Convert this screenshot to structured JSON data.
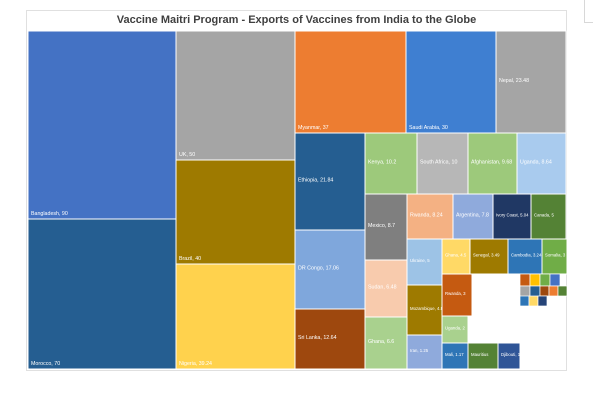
{
  "chart_data": {
    "type": "treemap",
    "title": "Vaccine Maitri Program - Exports of Vaccines from India to the Globe",
    "tiles": [
      {
        "label": "Bangladesh, 90",
        "color": "#4472c4"
      },
      {
        "label": "Morocco, 70",
        "color": "#255e91"
      },
      {
        "label": "UK, 50",
        "color": "#a5a5a5"
      },
      {
        "label": "Brazil, 40",
        "color": "#9e7a00"
      },
      {
        "label": "Nigeria, 39.24",
        "color": "#ffd24d"
      },
      {
        "label": "Myanmar, 37",
        "color": "#ed7d31"
      },
      {
        "label": "Saudi Arabia, 30",
        "color": "#3f7fd1"
      },
      {
        "label": "Nepal, 23.48",
        "color": "#a5a5a5"
      },
      {
        "label": "Ethiopia, 21.84",
        "color": "#255e91"
      },
      {
        "label": "DR Congo, 17.06",
        "color": "#7fa7dc"
      },
      {
        "label": "Sri Lanka, 12.64",
        "color": "#9e480e"
      },
      {
        "label": "Kenya, 10.2",
        "color": "#9dc97b"
      },
      {
        "label": "South Africa, 10",
        "color": "#b7b7b7"
      },
      {
        "label": "Afghanistan, 9.68",
        "color": "#9dc97b"
      },
      {
        "label": "Uganda, 8.64",
        "color": "#a9cbee"
      },
      {
        "label": "Mexico, 8.7",
        "color": "#7f7f7f"
      },
      {
        "label": "Rwanda, 8.24",
        "color": "#f4b183"
      },
      {
        "label": "Argentina, 7.8",
        "color": "#8faadc"
      },
      {
        "label": "Ivory Coast, 5.04",
        "color": "#203864"
      },
      {
        "label": "Canada, 5",
        "color": "#548235"
      },
      {
        "label": "Sudan, 6.48",
        "color": "#f8cbad"
      },
      {
        "label": "Ghana, 6.6",
        "color": "#a9d18e"
      },
      {
        "label": "Ukraine, 5",
        "color": "#9dc3e6"
      },
      {
        "label": "Mozambique, 4.84",
        "color": "#9e7a00"
      },
      {
        "label": "Iran, 1.25",
        "color": "#8faadc"
      },
      {
        "label": "Ghana, 4.5",
        "color": "#ffd966"
      },
      {
        "label": "Senegal, 3.49",
        "color": "#9e7a00"
      },
      {
        "label": "Cambodia, 3.24",
        "color": "#2e75b6"
      },
      {
        "label": "Somalia, 3",
        "color": "#70ad47"
      },
      {
        "label": "Rwanda, 3",
        "color": "#c55a11"
      },
      {
        "label": "Uganda, 2",
        "color": "#a9d18e"
      },
      {
        "label": "Mali, 1.17",
        "color": "#2e75b6"
      },
      {
        "label": "Mauritius",
        "color": "#548235"
      },
      {
        "label": "Djibouti, 1",
        "color": "#2f5597"
      }
    ]
  }
}
